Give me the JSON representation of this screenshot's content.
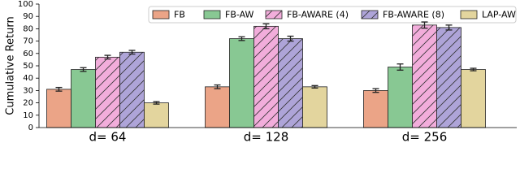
{
  "chart_data": {
    "type": "bar",
    "y_label": "Cumulative Return",
    "categories": [
      "d= 64",
      "d= 128",
      "d= 256"
    ],
    "series": [
      {
        "name": "FB",
        "color": "#eba487",
        "hatch": false,
        "values": [
          31,
          33,
          30
        ],
        "errors": [
          1.5,
          1.5,
          1.5
        ]
      },
      {
        "name": "FB-AW",
        "color": "#88c893",
        "hatch": false,
        "values": [
          47,
          72,
          49
        ],
        "errors": [
          1.5,
          1.5,
          2.5
        ]
      },
      {
        "name": "FB-AWARE (4)",
        "color": "#f2addb",
        "hatch": true,
        "values": [
          57,
          82,
          83
        ],
        "errors": [
          1.5,
          2,
          2.5
        ]
      },
      {
        "name": "FB-AWARE (8)",
        "color": "#aea4d8",
        "hatch": true,
        "values": [
          61,
          72,
          81
        ],
        "errors": [
          1.5,
          2,
          2
        ]
      },
      {
        "name": "LAP-AW",
        "color": "#e3d59e",
        "hatch": false,
        "values": [
          20,
          33,
          47
        ],
        "errors": [
          1,
          1,
          1
        ]
      }
    ],
    "ylim": [
      0,
      100
    ],
    "yticks": [
      0,
      10,
      20,
      30,
      40,
      50,
      60,
      70,
      80,
      90,
      100
    ],
    "grid": false,
    "legend": "top-right"
  }
}
